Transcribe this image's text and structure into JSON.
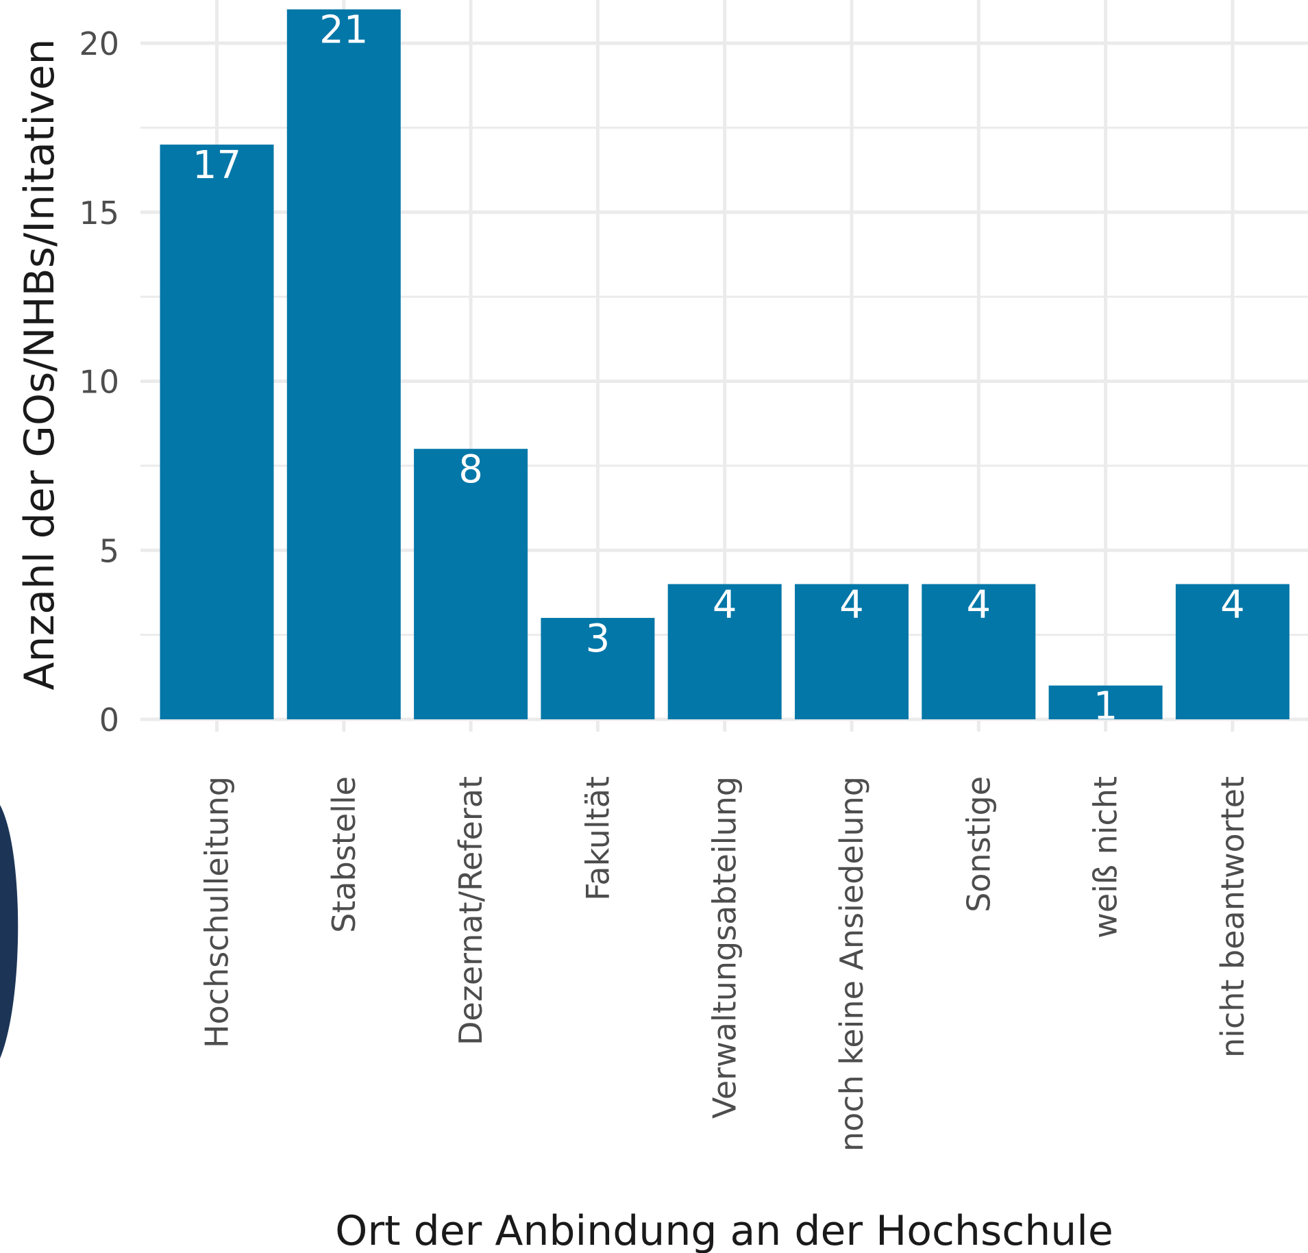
{
  "chart_data": {
    "type": "bar",
    "categories": [
      "Hochschulleitung",
      "Stabstelle",
      "Dezernat/Referat",
      "Fakultät",
      "Verwaltungsabteilung",
      "noch keine Ansiedelung",
      "Sonstige",
      "weiß nicht",
      "nicht beantwortet"
    ],
    "values": [
      17,
      21,
      8,
      3,
      4,
      4,
      4,
      1,
      4
    ],
    "data_labels": [
      "17",
      "21",
      "8",
      "3",
      "4",
      "4",
      "4",
      "1",
      "4"
    ],
    "xlabel": "Ort der Anbindung an der Hochschule",
    "ylabel": "Anzahl der GOs/NHBs/Initativen",
    "ylim": [
      0,
      21
    ],
    "yticks": [
      0,
      5,
      10,
      15,
      20
    ],
    "ytick_labels": [
      "0",
      "5",
      "10",
      "15",
      "20"
    ],
    "grid": true,
    "bar_color": "#0377a8",
    "grid_color": "#ebebeb",
    "decoration_color": "#1c3557"
  }
}
